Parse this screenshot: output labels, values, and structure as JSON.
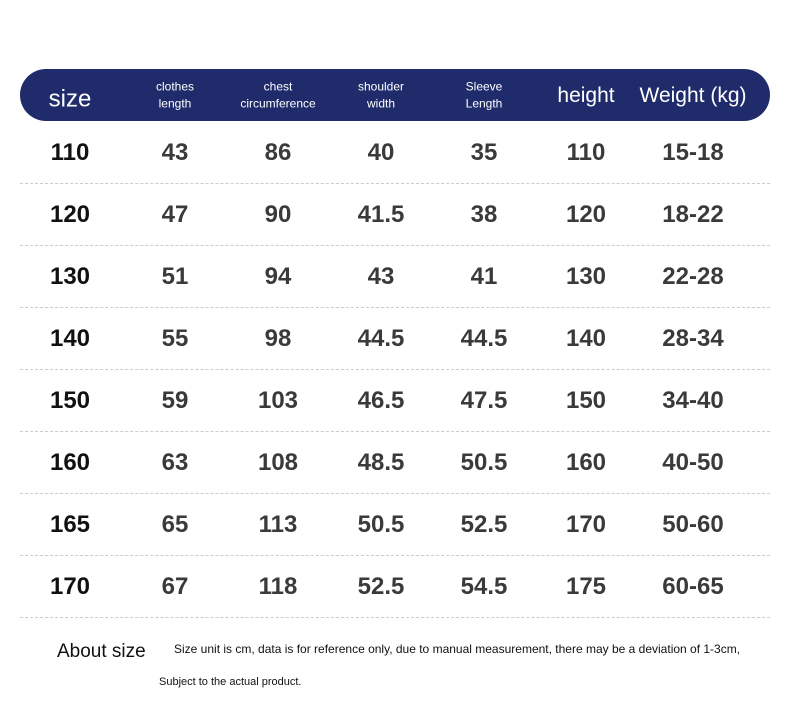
{
  "table": {
    "header": [
      [
        "size"
      ],
      [
        "clothes",
        "length"
      ],
      [
        "chest",
        "circumference"
      ],
      [
        "shoulder",
        "width"
      ],
      [
        "Sleeve",
        "Length"
      ],
      [
        "height"
      ],
      [
        "Weight (kg)"
      ]
    ],
    "rows": [
      [
        110,
        43,
        86,
        40,
        35,
        110,
        "15-18"
      ],
      [
        120,
        47,
        90,
        41.5,
        38,
        120,
        "18-22"
      ],
      [
        130,
        51,
        94,
        43,
        41,
        130,
        "22-28"
      ],
      [
        140,
        55,
        98,
        44.5,
        44.5,
        140,
        "28-34"
      ],
      [
        150,
        59,
        103,
        46.5,
        47.5,
        150,
        "34-40"
      ],
      [
        160,
        63,
        108,
        48.5,
        50.5,
        160,
        "40-50"
      ],
      [
        165,
        65,
        113,
        50.5,
        52.5,
        170,
        "50-60"
      ],
      [
        170,
        67,
        118,
        52.5,
        54.5,
        175,
        "60-65"
      ]
    ]
  },
  "note": {
    "title": "About size",
    "line1": "Size unit is cm, data is for reference only, due to manual measurement, there may be a deviation of 1-3cm,",
    "line2": "Subject to the actual product."
  }
}
